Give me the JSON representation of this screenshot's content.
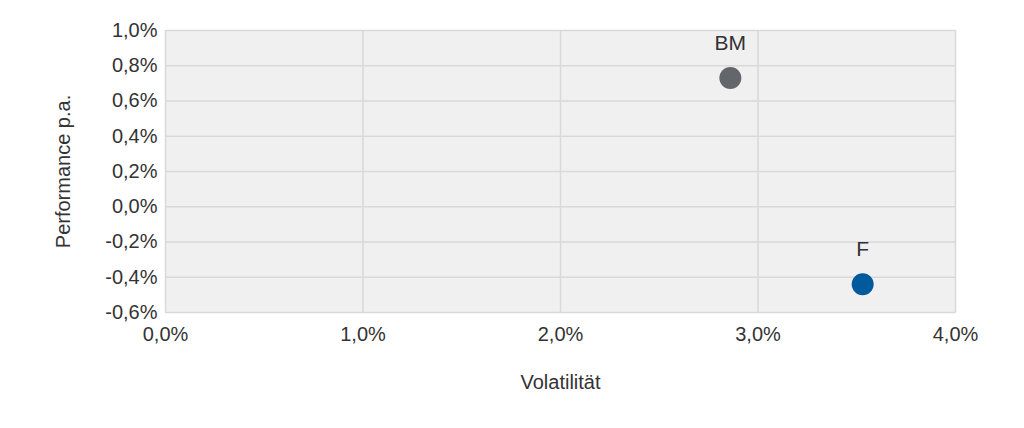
{
  "chart_data": {
    "type": "scatter",
    "x_label": "Volatilität",
    "y_label": "Performance p.a.",
    "series": [
      {
        "name": "BM",
        "color": "#63666a",
        "x": [
          2.86
        ],
        "values": [
          0.73
        ]
      },
      {
        "name": "F",
        "color": "#005a9c",
        "x": [
          3.53
        ],
        "values": [
          -0.44
        ]
      }
    ],
    "xlim": [
      0,
      4
    ],
    "xticks": [
      {
        "value": 0,
        "label": "0,0%"
      },
      {
        "value": 1,
        "label": "1,0%"
      },
      {
        "value": 2,
        "label": "2,0%"
      },
      {
        "value": 3,
        "label": "3,0%"
      },
      {
        "value": 4,
        "label": "4,0%"
      }
    ],
    "ylim": [
      -0.6,
      1.0
    ],
    "yticks": [
      {
        "value": -0.6,
        "label": "-0,6%"
      },
      {
        "value": -0.4,
        "label": "-0,4%"
      },
      {
        "value": -0.2,
        "label": "-0,2%"
      },
      {
        "value": 0,
        "label": "0,0%"
      },
      {
        "value": 0.2,
        "label": "0,2%"
      },
      {
        "value": 0.4,
        "label": "0,4%"
      },
      {
        "value": 0.6,
        "label": "0,6%"
      },
      {
        "value": 0.8,
        "label": "0,8%"
      },
      {
        "value": 1.0,
        "label": "1,0%"
      }
    ],
    "grid": true
  }
}
